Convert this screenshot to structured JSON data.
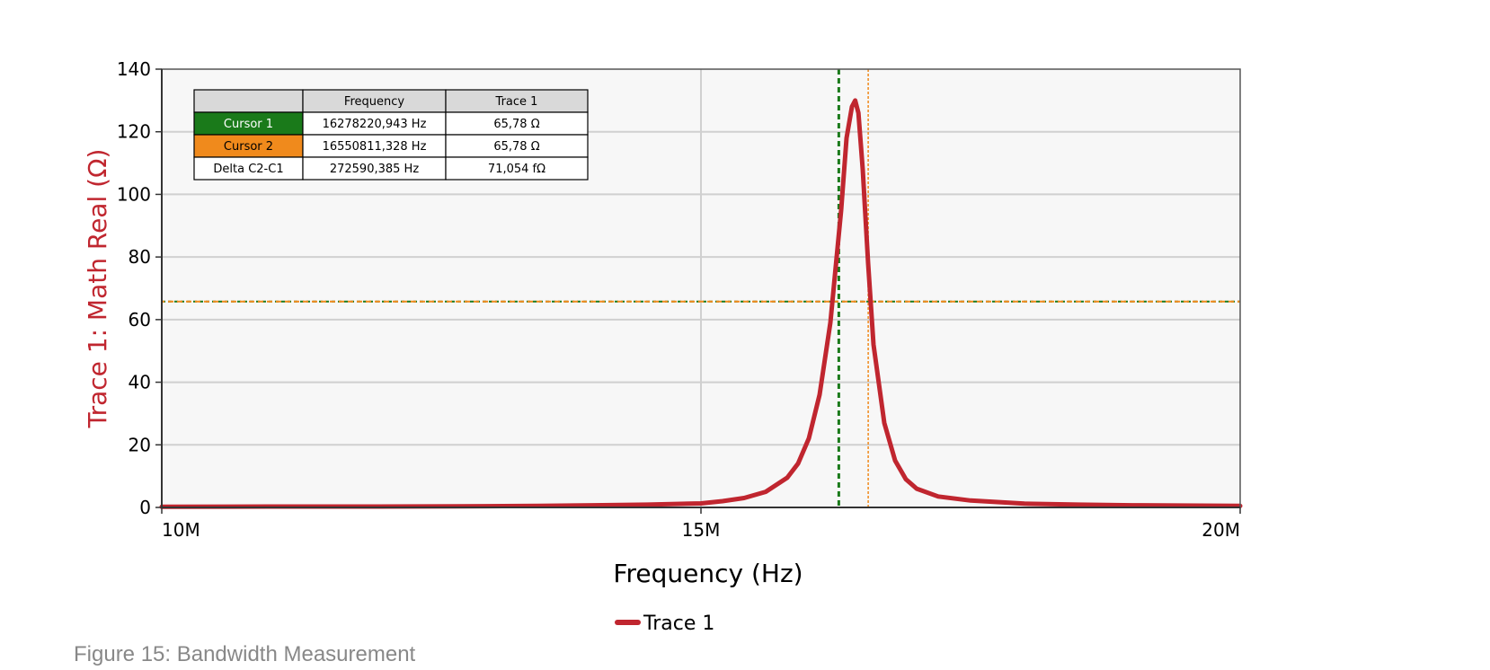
{
  "chart_data": {
    "type": "line",
    "xlabel": "Frequency (Hz)",
    "ylabel": "Trace 1: Math Real (Ω)",
    "xlim": [
      10000000,
      20000000
    ],
    "ylim": [
      0,
      140
    ],
    "x_ticks": [
      {
        "value": 10000000,
        "label": "10M"
      },
      {
        "value": 15000000,
        "label": "15M"
      },
      {
        "value": 20000000,
        "label": "20M"
      }
    ],
    "y_ticks": [
      {
        "value": 0,
        "label": "0"
      },
      {
        "value": 20,
        "label": "20"
      },
      {
        "value": 40,
        "label": "40"
      },
      {
        "value": 60,
        "label": "60"
      },
      {
        "value": 80,
        "label": "80"
      },
      {
        "value": 100,
        "label": "100"
      },
      {
        "value": 120,
        "label": "120"
      },
      {
        "value": 140,
        "label": "140"
      }
    ],
    "grid": true,
    "legend_position": "bottom-center",
    "series": [
      {
        "name": "Trace 1",
        "color": "#c0262f",
        "x": [
          10000000,
          11000000,
          12000000,
          13000000,
          13500000,
          14000000,
          14500000,
          15000000,
          15200000,
          15400000,
          15600000,
          15800000,
          15900000,
          16000000,
          16100000,
          16200000,
          16300000,
          16350000,
          16400000,
          16430000,
          16460000,
          16500000,
          16550000,
          16600000,
          16700000,
          16800000,
          16900000,
          17000000,
          17200000,
          17500000,
          18000000,
          18500000,
          19000000,
          20000000
        ],
        "y": [
          0.2,
          0.3,
          0.3,
          0.4,
          0.5,
          0.7,
          0.9,
          1.3,
          2.0,
          3.0,
          5.0,
          9.5,
          14,
          22,
          36,
          59,
          95,
          118,
          128,
          130,
          126,
          108,
          78,
          52,
          27,
          15,
          9,
          6,
          3.5,
          2.2,
          1.2,
          0.9,
          0.7,
          0.5
        ]
      }
    ],
    "cursors": [
      {
        "name": "Cursor 1",
        "frequency": 16278220.943,
        "value": 65.78,
        "color": "#1a7a1a"
      },
      {
        "name": "Cursor 2",
        "frequency": 16550811.328,
        "value": 65.78,
        "color": "#f08a1c"
      }
    ],
    "cursor_table": {
      "headers": [
        "",
        "Frequency",
        "Trace 1"
      ],
      "rows": [
        {
          "label": "Cursor 1",
          "frequency": "16278220,943 Hz",
          "trace": "65,78 Ω",
          "bg": "#1a7a1a",
          "fg": "#ffffff"
        },
        {
          "label": "Cursor 2",
          "frequency": "16550811,328 Hz",
          "trace": "65,78 Ω",
          "bg": "#f08a1c",
          "fg": "#000000"
        },
        {
          "label": "Delta C2-C1",
          "frequency": "272590,385 Hz",
          "trace": "71,054 fΩ",
          "bg": "#ffffff",
          "fg": "#000000"
        }
      ]
    }
  },
  "caption": "Figure 15: Bandwidth Measurement",
  "colors": {
    "trace": "#c0262f",
    "ylabel": "#c0262f",
    "plot_bg": "#f7f7f7",
    "grid": "#d0d0d0",
    "header_bg": "#d9d9d9"
  }
}
